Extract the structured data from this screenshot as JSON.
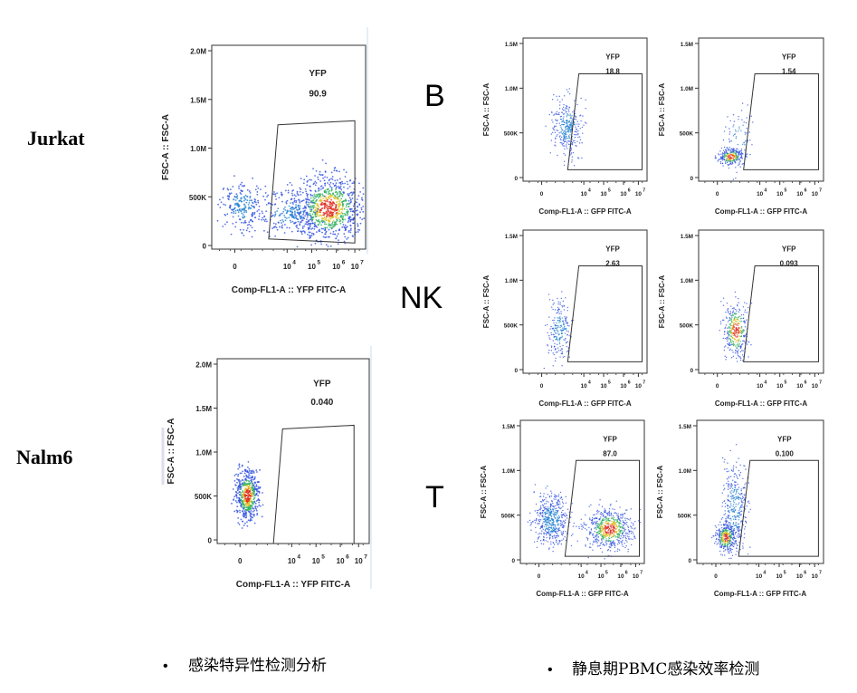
{
  "row_labels": [
    "Jurkat",
    "Nalm6"
  ],
  "group_labels": [
    "B",
    "NK",
    "T"
  ],
  "plots": [
    {
      "gate_label": "YFP",
      "gate_value": "90.9",
      "ylabel": "FSC-A :: FSC-A",
      "xlabel": "Comp-FL1-A :: YFP FITC-A",
      "yticks": [
        "2.0M",
        "1.5M",
        "1.0M",
        "500K",
        "0"
      ],
      "xticks": [
        {
          "base": "0"
        },
        {
          "base": "10",
          "sup": "4"
        },
        {
          "base": "10",
          "sup": "5"
        },
        {
          "base": "10",
          "sup": "6"
        },
        {
          "base": "10",
          "sup": "7"
        }
      ]
    },
    {
      "gate_label": "YFP",
      "gate_value": "0.040",
      "ylabel": "FSC-A :: FSC-A",
      "xlabel": "Comp-FL1-A :: YFP FITC-A",
      "yticks": [
        "2.0M",
        "1.5M",
        "1.0M",
        "500K",
        "0"
      ],
      "xticks": [
        {
          "base": "0"
        },
        {
          "base": "10",
          "sup": "4"
        },
        {
          "base": "10",
          "sup": "5"
        },
        {
          "base": "10",
          "sup": "6"
        },
        {
          "base": "10",
          "sup": "7"
        }
      ]
    },
    {
      "gate_label": "YFP",
      "gate_value": "18.8",
      "ylabel": "FSC-A :: FSC-A",
      "xlabel": "Comp-FL1-A :: GFP FITC-A",
      "yticks": [
        "1.5M",
        "1.0M",
        "500K",
        "0"
      ],
      "xticks": [
        {
          "base": "0"
        },
        {
          "base": "10",
          "sup": "4"
        },
        {
          "base": "10",
          "sup": "5"
        },
        {
          "base": "10",
          "sup": "6"
        },
        {
          "base": "10",
          "sup": "7"
        }
      ]
    },
    {
      "gate_label": "YFP",
      "gate_value": "1.54",
      "ylabel": "FSC-A :: FSC-A",
      "xlabel": "Comp-FL1-A :: GFP FITC-A",
      "yticks": [
        "1.5M",
        "1.0M",
        "500K",
        "0"
      ],
      "xticks": [
        {
          "base": "0"
        },
        {
          "base": "10",
          "sup": "4"
        },
        {
          "base": "10",
          "sup": "5"
        },
        {
          "base": "10",
          "sup": "6"
        },
        {
          "base": "10",
          "sup": "7"
        }
      ]
    },
    {
      "gate_label": "YFP",
      "gate_value": "2.63",
      "ylabel": "FSC-A :: FSC-A",
      "xlabel": "Comp-FL1-A :: GFP FITC-A",
      "yticks": [
        "1.5M",
        "1.0M",
        "500K",
        "0"
      ],
      "xticks": [
        {
          "base": "0"
        },
        {
          "base": "10",
          "sup": "4"
        },
        {
          "base": "10",
          "sup": "5"
        },
        {
          "base": "10",
          "sup": "6"
        },
        {
          "base": "10",
          "sup": "7"
        }
      ]
    },
    {
      "gate_label": "YFP",
      "gate_value": "0.093",
      "ylabel": "FSC-A :: FSC-A",
      "xlabel": "Comp-FL1-A :: GFP FITC-A",
      "yticks": [
        "1.5M",
        "1.0M",
        "500K",
        "0"
      ],
      "xticks": [
        {
          "base": "0"
        },
        {
          "base": "10",
          "sup": "4"
        },
        {
          "base": "10",
          "sup": "5"
        },
        {
          "base": "10",
          "sup": "6"
        },
        {
          "base": "10",
          "sup": "7"
        }
      ]
    },
    {
      "gate_label": "YFP",
      "gate_value": "87.0",
      "ylabel": "FSC-A :: FSC-A",
      "xlabel": "Comp-FL1-A :: GFP FITC-A",
      "yticks": [
        "1.5M",
        "1.0M",
        "500K",
        "0"
      ],
      "xticks": [
        {
          "base": "0"
        },
        {
          "base": "10",
          "sup": "4"
        },
        {
          "base": "10",
          "sup": "5"
        },
        {
          "base": "10",
          "sup": "6"
        },
        {
          "base": "10",
          "sup": "7"
        }
      ]
    },
    {
      "gate_label": "YFP",
      "gate_value": "0.100",
      "ylabel": "FSC-A :: FSC-A",
      "xlabel": "Comp-FL1-A :: GFP FITC-A",
      "yticks": [
        "1.5M",
        "1.0M",
        "500K",
        "0"
      ],
      "xticks": [
        {
          "base": "0"
        },
        {
          "base": "10",
          "sup": "4"
        },
        {
          "base": "10",
          "sup": "5"
        },
        {
          "base": "10",
          "sup": "6"
        },
        {
          "base": "10",
          "sup": "7"
        }
      ]
    }
  ],
  "bullets": [
    "感染特异性检测分析",
    "静息期PBMC感染效率检测"
  ]
}
